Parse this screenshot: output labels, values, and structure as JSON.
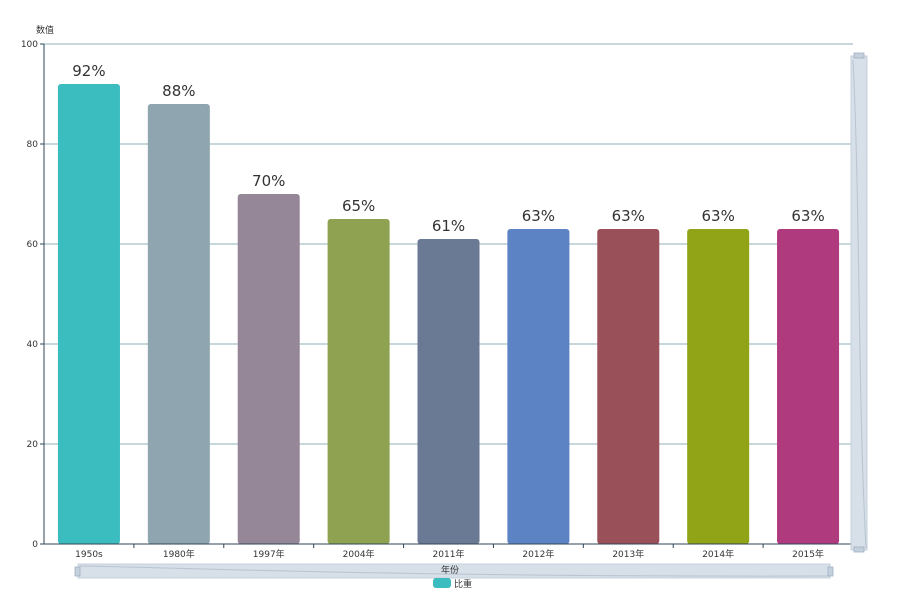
{
  "chart_data": {
    "type": "bar",
    "ylabel": "数值",
    "xlabel": "年份",
    "ylim": [
      0,
      100
    ],
    "yticks": [
      0,
      20,
      40,
      60,
      80,
      100
    ],
    "categories": [
      "1950s",
      "1980年",
      "1997年",
      "2004年",
      "2011年",
      "2012年",
      "2013年",
      "2014年",
      "2015年"
    ],
    "series": [
      {
        "name": "比重",
        "values": [
          92,
          88,
          70,
          65,
          61,
          63,
          63,
          63,
          63
        ],
        "labels": [
          "92%",
          "88%",
          "70%",
          "65%",
          "61%",
          "63%",
          "63%",
          "63%",
          "63%"
        ],
        "colors": [
          "#3bbdbf",
          "#8fa6b0",
          "#958797",
          "#8ea252",
          "#6b7a94",
          "#5c83c4",
          "#9a5058",
          "#91a418",
          "#b03a7e"
        ]
      }
    ],
    "legend": "bottom-center",
    "legend_color": "#3bbdbf",
    "grid": true,
    "zoom_sliders": [
      "bottom",
      "right"
    ]
  }
}
